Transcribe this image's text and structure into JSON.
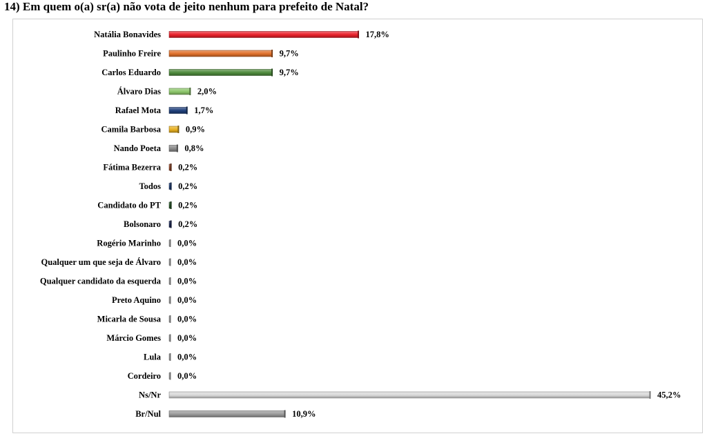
{
  "title": "14) Em quem o(a) sr(a) não vota de jeito nenhum para prefeito de Natal?",
  "chart_data": {
    "type": "bar",
    "orientation": "horizontal",
    "title": "14) Em quem o(a) sr(a) não vota de jeito nenhum para prefeito de Natal?",
    "xlim": [
      0,
      45.2
    ],
    "grid": false,
    "categories": [
      "Natália Bonavides",
      "Paulinho Freire",
      "Carlos Eduardo",
      "Álvaro Dias",
      "Rafael Mota",
      "Camila Barbosa",
      "Nando Poeta",
      "Fátima Bezerra",
      "Todos",
      "Candidato do PT",
      "Bolsonaro",
      "Rogério Marinho",
      "Qualquer um que seja de Álvaro",
      "Qualquer candidato da esquerda",
      "Preto Aquino",
      "Micarla de Sousa",
      "Márcio Gomes",
      "Lula",
      "Cordeiro",
      "Ns/Nr",
      "Br/Nul"
    ],
    "values": [
      17.8,
      9.7,
      9.7,
      2.0,
      1.7,
      0.9,
      0.8,
      0.2,
      0.2,
      0.2,
      0.2,
      0.0,
      0.0,
      0.0,
      0.0,
      0.0,
      0.0,
      0.0,
      0.0,
      45.2,
      10.9
    ],
    "labels": [
      "17,8%",
      "9,7%",
      "9,7%",
      "2,0%",
      "1,7%",
      "0,9%",
      "0,8%",
      "0,2%",
      "0,2%",
      "0,2%",
      "0,2%",
      "0,0%",
      "0,0%",
      "0,0%",
      "0,0%",
      "0,0%",
      "0,0%",
      "0,0%",
      "0,0%",
      "45,2%",
      "10,9%"
    ],
    "colors": [
      "#e8202a",
      "#e0702a",
      "#4e8a3c",
      "#8cc66a",
      "#1f3f7a",
      "#e8b020",
      "#8a8a8a",
      "#9a4a2a",
      "#1f3f7a",
      "#2a5a2a",
      "#1f2a5a",
      "#cccccc",
      "#cccccc",
      "#cccccc",
      "#cccccc",
      "#cccccc",
      "#cccccc",
      "#cccccc",
      "#cccccc",
      "#d8d8d8",
      "#9a9a9a"
    ]
  }
}
